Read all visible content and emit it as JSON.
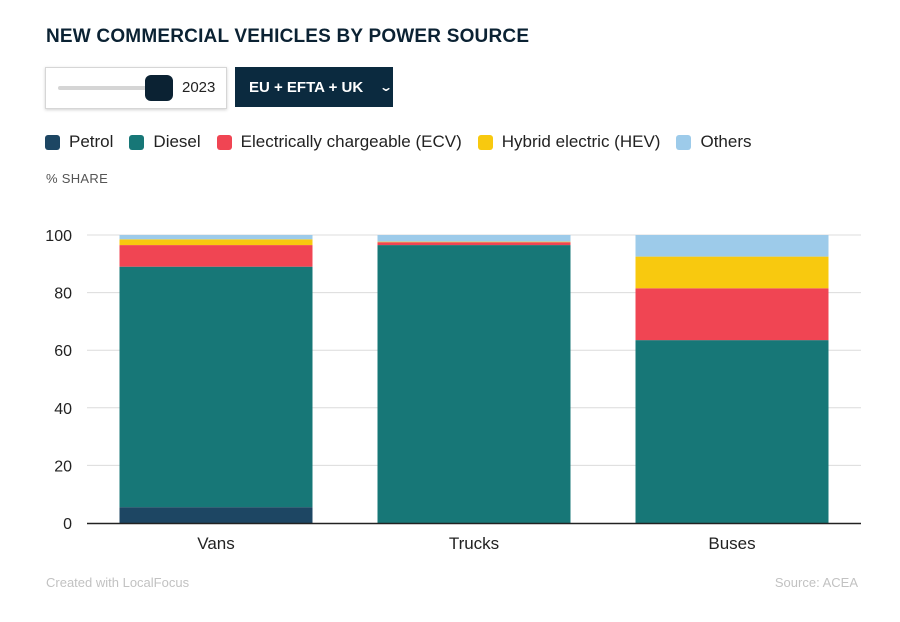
{
  "title": "NEW COMMERCIAL VEHICLES BY POWER SOURCE",
  "controls": {
    "year": "2023",
    "region": "EU + EFTA + UK"
  },
  "unit_label": "% SHARE",
  "footer": {
    "credit": "Created with LocalFocus",
    "source": "Source:  ACEA"
  },
  "colors": {
    "Petrol": "#1d4663",
    "Diesel": "#177777",
    "Electrically chargeable (ECV)": "#f04553",
    "Hybrid electric (HEV)": "#f8c90f",
    "Others": "#9dcbea"
  },
  "chart_data": {
    "type": "bar",
    "stacked": true,
    "categories": [
      "Vans",
      "Trucks",
      "Buses"
    ],
    "series": [
      {
        "name": "Petrol",
        "values": [
          5.5,
          0,
          0
        ]
      },
      {
        "name": "Diesel",
        "values": [
          83.5,
          96.5,
          63.5
        ]
      },
      {
        "name": "Electrically chargeable (ECV)",
        "values": [
          7.5,
          1.0,
          18.0
        ]
      },
      {
        "name": "Hybrid electric (HEV)",
        "values": [
          2.0,
          0.2,
          11.0
        ]
      },
      {
        "name": "Others",
        "values": [
          1.5,
          2.3,
          7.5
        ]
      }
    ],
    "yticks": [
      0,
      20,
      40,
      60,
      80,
      100
    ],
    "ylim": [
      0,
      100
    ],
    "grid": true,
    "legend": "top"
  }
}
